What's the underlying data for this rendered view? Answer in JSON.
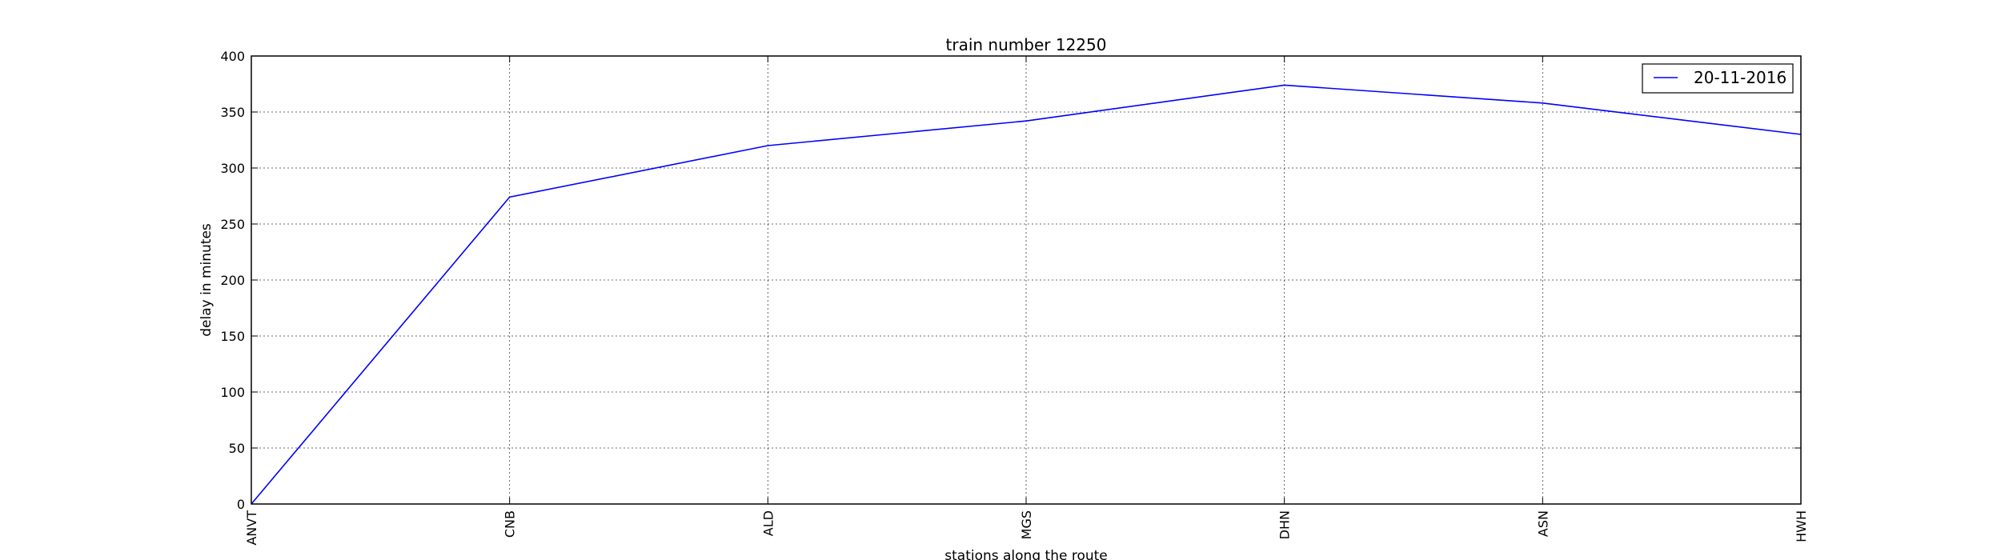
{
  "chart_data": {
    "type": "line",
    "title": "train number 12250",
    "xlabel": "stations along the route",
    "ylabel": "delay in minutes",
    "categories": [
      "ANVT",
      "CNB",
      "ALD",
      "MGS",
      "DHN",
      "ASN",
      "HWH"
    ],
    "series": [
      {
        "name": "20-11-2016",
        "values": [
          0,
          274,
          320,
          342,
          374,
          358,
          330
        ],
        "color": "#0000ff"
      }
    ],
    "ylim": [
      0,
      400
    ],
    "yticks": [
      0,
      50,
      100,
      150,
      200,
      250,
      300,
      350,
      400
    ],
    "grid": true,
    "legend_position": "top-right"
  }
}
